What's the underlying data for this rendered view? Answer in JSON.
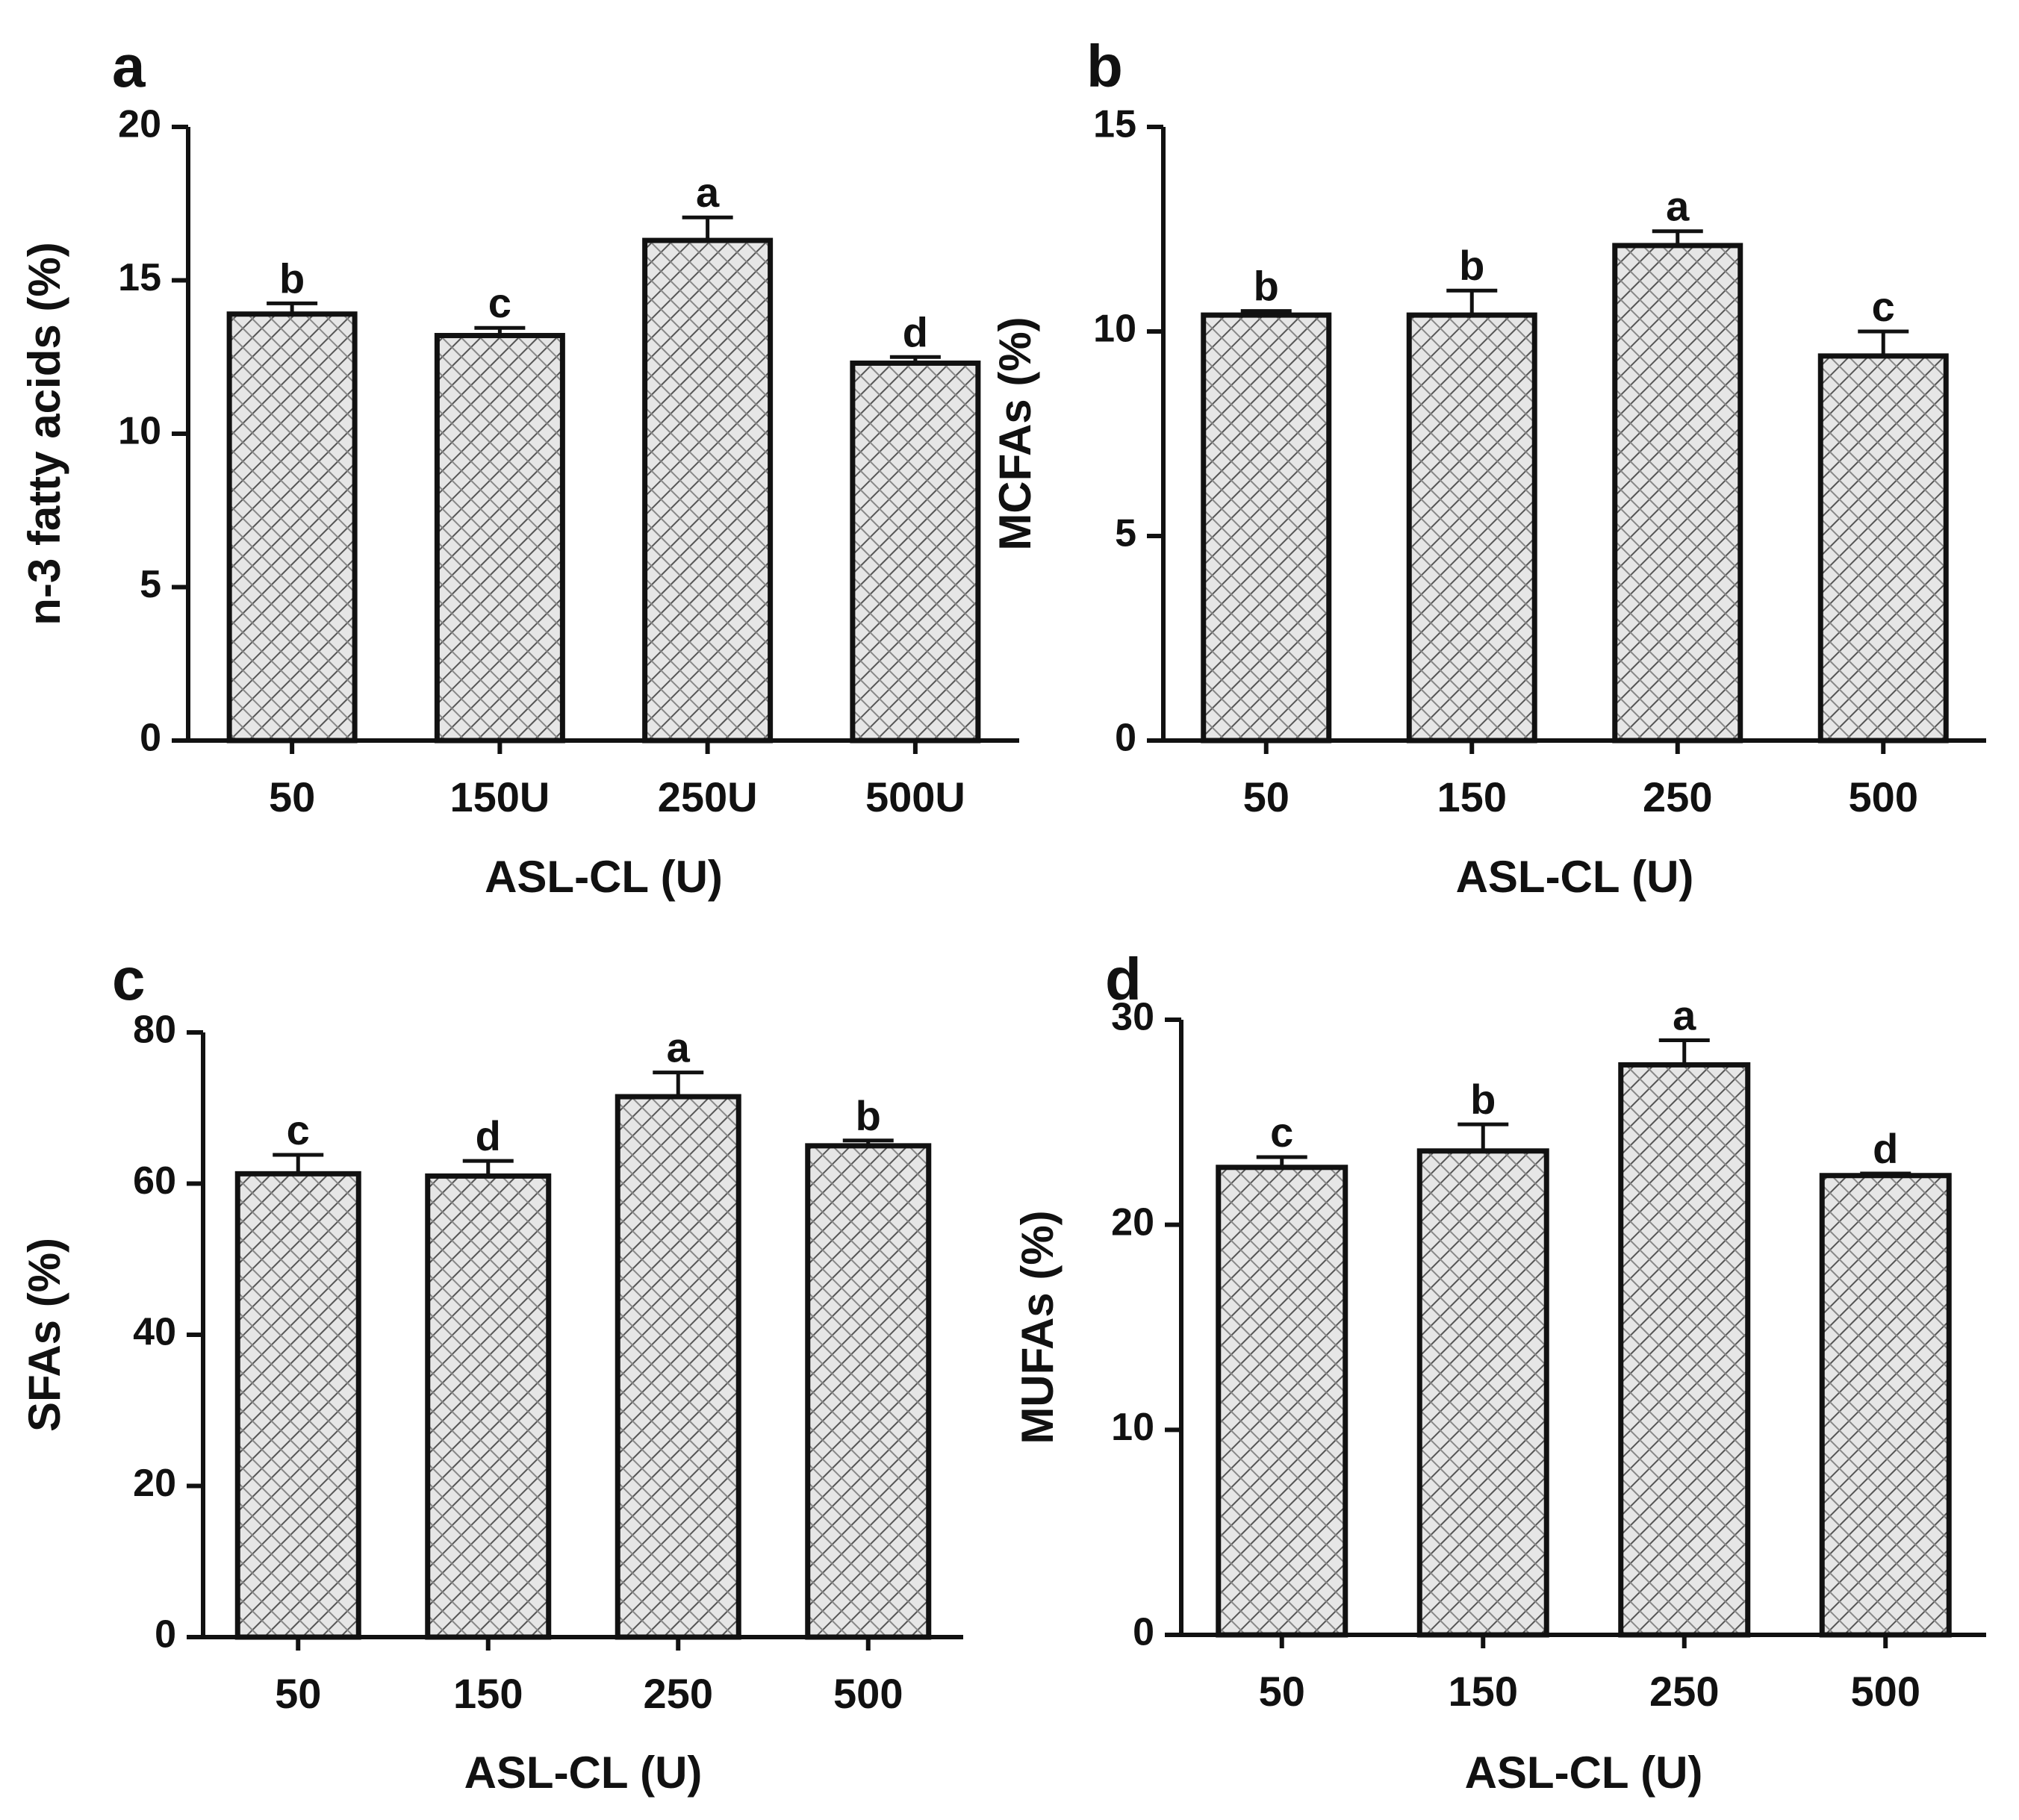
{
  "chart_data": [
    {
      "panel": "a",
      "type": "bar",
      "categories": [
        "50",
        "150U",
        "250U",
        "500U"
      ],
      "values": [
        13.9,
        13.2,
        16.3,
        12.3
      ],
      "errors": [
        0.35,
        0.25,
        0.75,
        0.2
      ],
      "significance": [
        "b",
        "c",
        "a",
        "d"
      ],
      "xlabel": "ASL-CL (U)",
      "ylabel": "n-3 fatty acids (%)",
      "ylim": [
        0,
        20
      ],
      "yticks": [
        0,
        5,
        10,
        15,
        20
      ],
      "grid": false
    },
    {
      "panel": "b",
      "type": "bar",
      "categories": [
        "50",
        "150",
        "250",
        "500"
      ],
      "values": [
        10.4,
        10.4,
        12.1,
        9.4
      ],
      "errors": [
        0.1,
        0.6,
        0.35,
        0.6
      ],
      "significance": [
        "b",
        "b",
        "a",
        "c"
      ],
      "xlabel": "ASL-CL (U)",
      "ylabel": "MCFAs (%)",
      "ylim": [
        0,
        15
      ],
      "yticks": [
        0,
        5,
        10,
        15
      ],
      "grid": false
    },
    {
      "panel": "c",
      "type": "bar",
      "categories": [
        "50",
        "150",
        "250",
        "500"
      ],
      "values": [
        61.3,
        61.0,
        71.5,
        65.0
      ],
      "errors": [
        2.5,
        2.0,
        3.2,
        0.7
      ],
      "significance": [
        "c",
        "d",
        "a",
        "b"
      ],
      "xlabel": "ASL-CL (U)",
      "ylabel": "SFAs (%)",
      "ylim": [
        0,
        80
      ],
      "yticks": [
        0,
        20,
        40,
        60,
        80
      ],
      "grid": false
    },
    {
      "panel": "d",
      "type": "bar",
      "categories": [
        "50",
        "150",
        "250",
        "500"
      ],
      "values": [
        22.8,
        23.6,
        27.8,
        22.4
      ],
      "errors": [
        0.5,
        1.3,
        1.2,
        0.1
      ],
      "significance": [
        "c",
        "b",
        "a",
        "d"
      ],
      "xlabel": "ASL-CL (U)",
      "ylabel": "MUFAs (%)",
      "ylim": [
        0,
        30
      ],
      "yticks": [
        0,
        10,
        20,
        30
      ],
      "grid": false
    }
  ]
}
